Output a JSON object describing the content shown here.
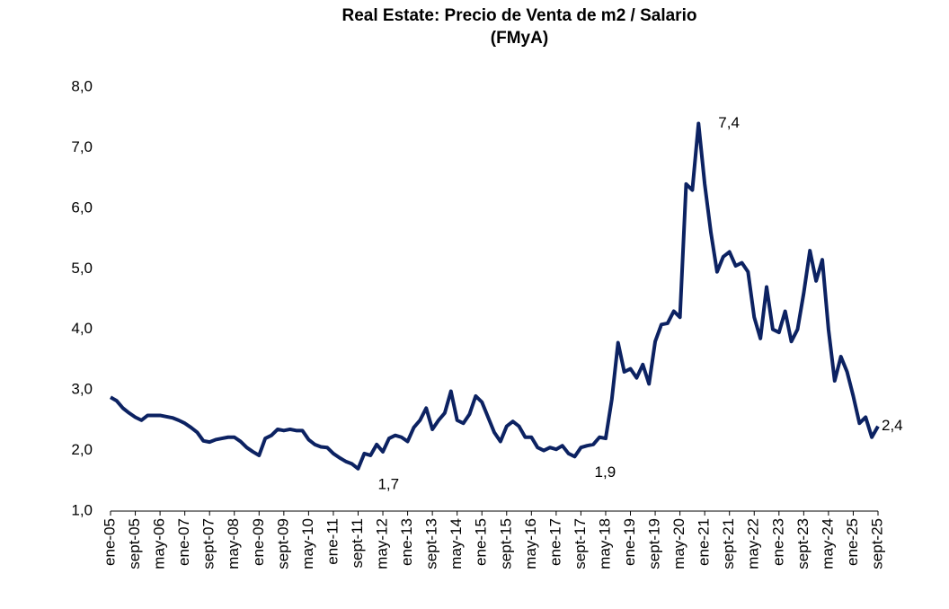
{
  "chart_data": {
    "type": "line",
    "title": [
      "Real Estate: Precio de Venta de m2 / Salario",
      "(FMyA)"
    ],
    "categories": [
      "ene-05",
      null,
      null,
      null,
      "sept-05",
      null,
      null,
      null,
      "may-06",
      null,
      null,
      null,
      "ene-07",
      null,
      null,
      null,
      "sept-07",
      null,
      null,
      null,
      "may-08",
      null,
      null,
      null,
      "ene-09",
      null,
      null,
      null,
      "sept-09",
      null,
      null,
      null,
      "may-10",
      null,
      null,
      null,
      "ene-11",
      null,
      null,
      null,
      "sept-11",
      null,
      null,
      null,
      "may-12",
      null,
      null,
      null,
      "ene-13",
      null,
      null,
      null,
      "sept-13",
      null,
      null,
      null,
      "may-14",
      null,
      null,
      null,
      "ene-15",
      null,
      null,
      null,
      "sept-15",
      null,
      null,
      null,
      "may-16",
      null,
      null,
      null,
      "ene-17",
      null,
      null,
      null,
      "sept-17",
      null,
      null,
      null,
      "may-18",
      null,
      null,
      null,
      "ene-19",
      null,
      null,
      null,
      "sept-19",
      null,
      null,
      null,
      "may-20",
      null,
      null,
      null,
      "ene-21",
      null,
      null,
      null,
      "sept-21",
      null,
      null,
      null,
      "may-22",
      null,
      null,
      null,
      "ene-23",
      null,
      null,
      null,
      "sept-23",
      null,
      null,
      null,
      "may-24",
      null,
      null,
      null,
      "ene-25",
      null,
      null,
      null,
      "sept-25"
    ],
    "values": [
      2.88,
      2.82,
      2.7,
      2.62,
      2.55,
      2.5,
      2.58,
      2.58,
      2.58,
      2.56,
      2.54,
      2.5,
      2.45,
      2.38,
      2.3,
      2.16,
      2.14,
      2.18,
      2.2,
      2.22,
      2.22,
      2.15,
      2.05,
      1.98,
      1.92,
      2.2,
      2.25,
      2.35,
      2.33,
      2.35,
      2.33,
      2.33,
      2.18,
      2.1,
      2.06,
      2.05,
      1.95,
      1.88,
      1.82,
      1.78,
      1.7,
      1.95,
      1.92,
      2.1,
      1.98,
      2.2,
      2.25,
      2.22,
      2.15,
      2.38,
      2.5,
      2.7,
      2.35,
      2.5,
      2.62,
      2.98,
      2.5,
      2.45,
      2.6,
      2.9,
      2.8,
      2.55,
      2.3,
      2.15,
      2.4,
      2.48,
      2.4,
      2.22,
      2.22,
      2.05,
      2.0,
      2.05,
      2.02,
      2.08,
      1.95,
      1.9,
      2.05,
      2.08,
      2.1,
      2.22,
      2.2,
      2.85,
      3.78,
      3.3,
      3.35,
      3.2,
      3.42,
      3.1,
      3.8,
      4.08,
      4.1,
      4.3,
      4.2,
      6.4,
      6.3,
      7.4,
      6.4,
      5.6,
      4.95,
      5.2,
      5.28,
      5.05,
      5.1,
      4.95,
      4.2,
      3.85,
      4.7,
      4.0,
      3.95,
      4.3,
      3.8,
      4.0,
      4.6,
      5.3,
      4.8,
      5.15,
      4.0,
      3.15,
      3.55,
      3.3,
      2.9,
      2.45,
      2.55,
      2.22,
      2.4
    ],
    "value_labels": [
      null,
      null,
      null,
      null,
      null,
      null,
      null,
      null,
      null,
      null,
      null,
      null,
      null,
      null,
      null,
      null,
      null,
      null,
      null,
      null,
      null,
      null,
      null,
      null,
      null,
      null,
      null,
      null,
      null,
      null,
      null,
      null,
      null,
      null,
      null,
      null,
      null,
      null,
      null,
      null,
      "1,7",
      null,
      null,
      null,
      null,
      null,
      null,
      null,
      null,
      null,
      null,
      null,
      null,
      null,
      null,
      null,
      null,
      null,
      null,
      null,
      null,
      null,
      null,
      null,
      null,
      null,
      null,
      null,
      null,
      null,
      null,
      null,
      null,
      null,
      null,
      "1,9",
      null,
      null,
      null,
      null,
      null,
      null,
      null,
      null,
      null,
      null,
      null,
      null,
      null,
      null,
      null,
      null,
      null,
      null,
      null,
      "7,4",
      null,
      null,
      null,
      null,
      null,
      null,
      null,
      null,
      null,
      null,
      null,
      null,
      null,
      null,
      null,
      null,
      null,
      null,
      null,
      null,
      null,
      null,
      null,
      null,
      null,
      null,
      null,
      null,
      "2,4"
    ],
    "color": "#0c2262",
    "ylim": [
      1,
      8
    ],
    "yticks": [
      {
        "value": 1,
        "label": "1,0"
      },
      {
        "value": 2,
        "label": "2,0"
      },
      {
        "value": 3,
        "label": "3,0"
      },
      {
        "value": 4,
        "label": "4,0"
      },
      {
        "value": 5,
        "label": "5,0"
      },
      {
        "value": 6,
        "label": "6,0"
      },
      {
        "value": 7,
        "label": "7,0"
      },
      {
        "value": 8,
        "label": "8,0"
      }
    ],
    "grid": false
  }
}
